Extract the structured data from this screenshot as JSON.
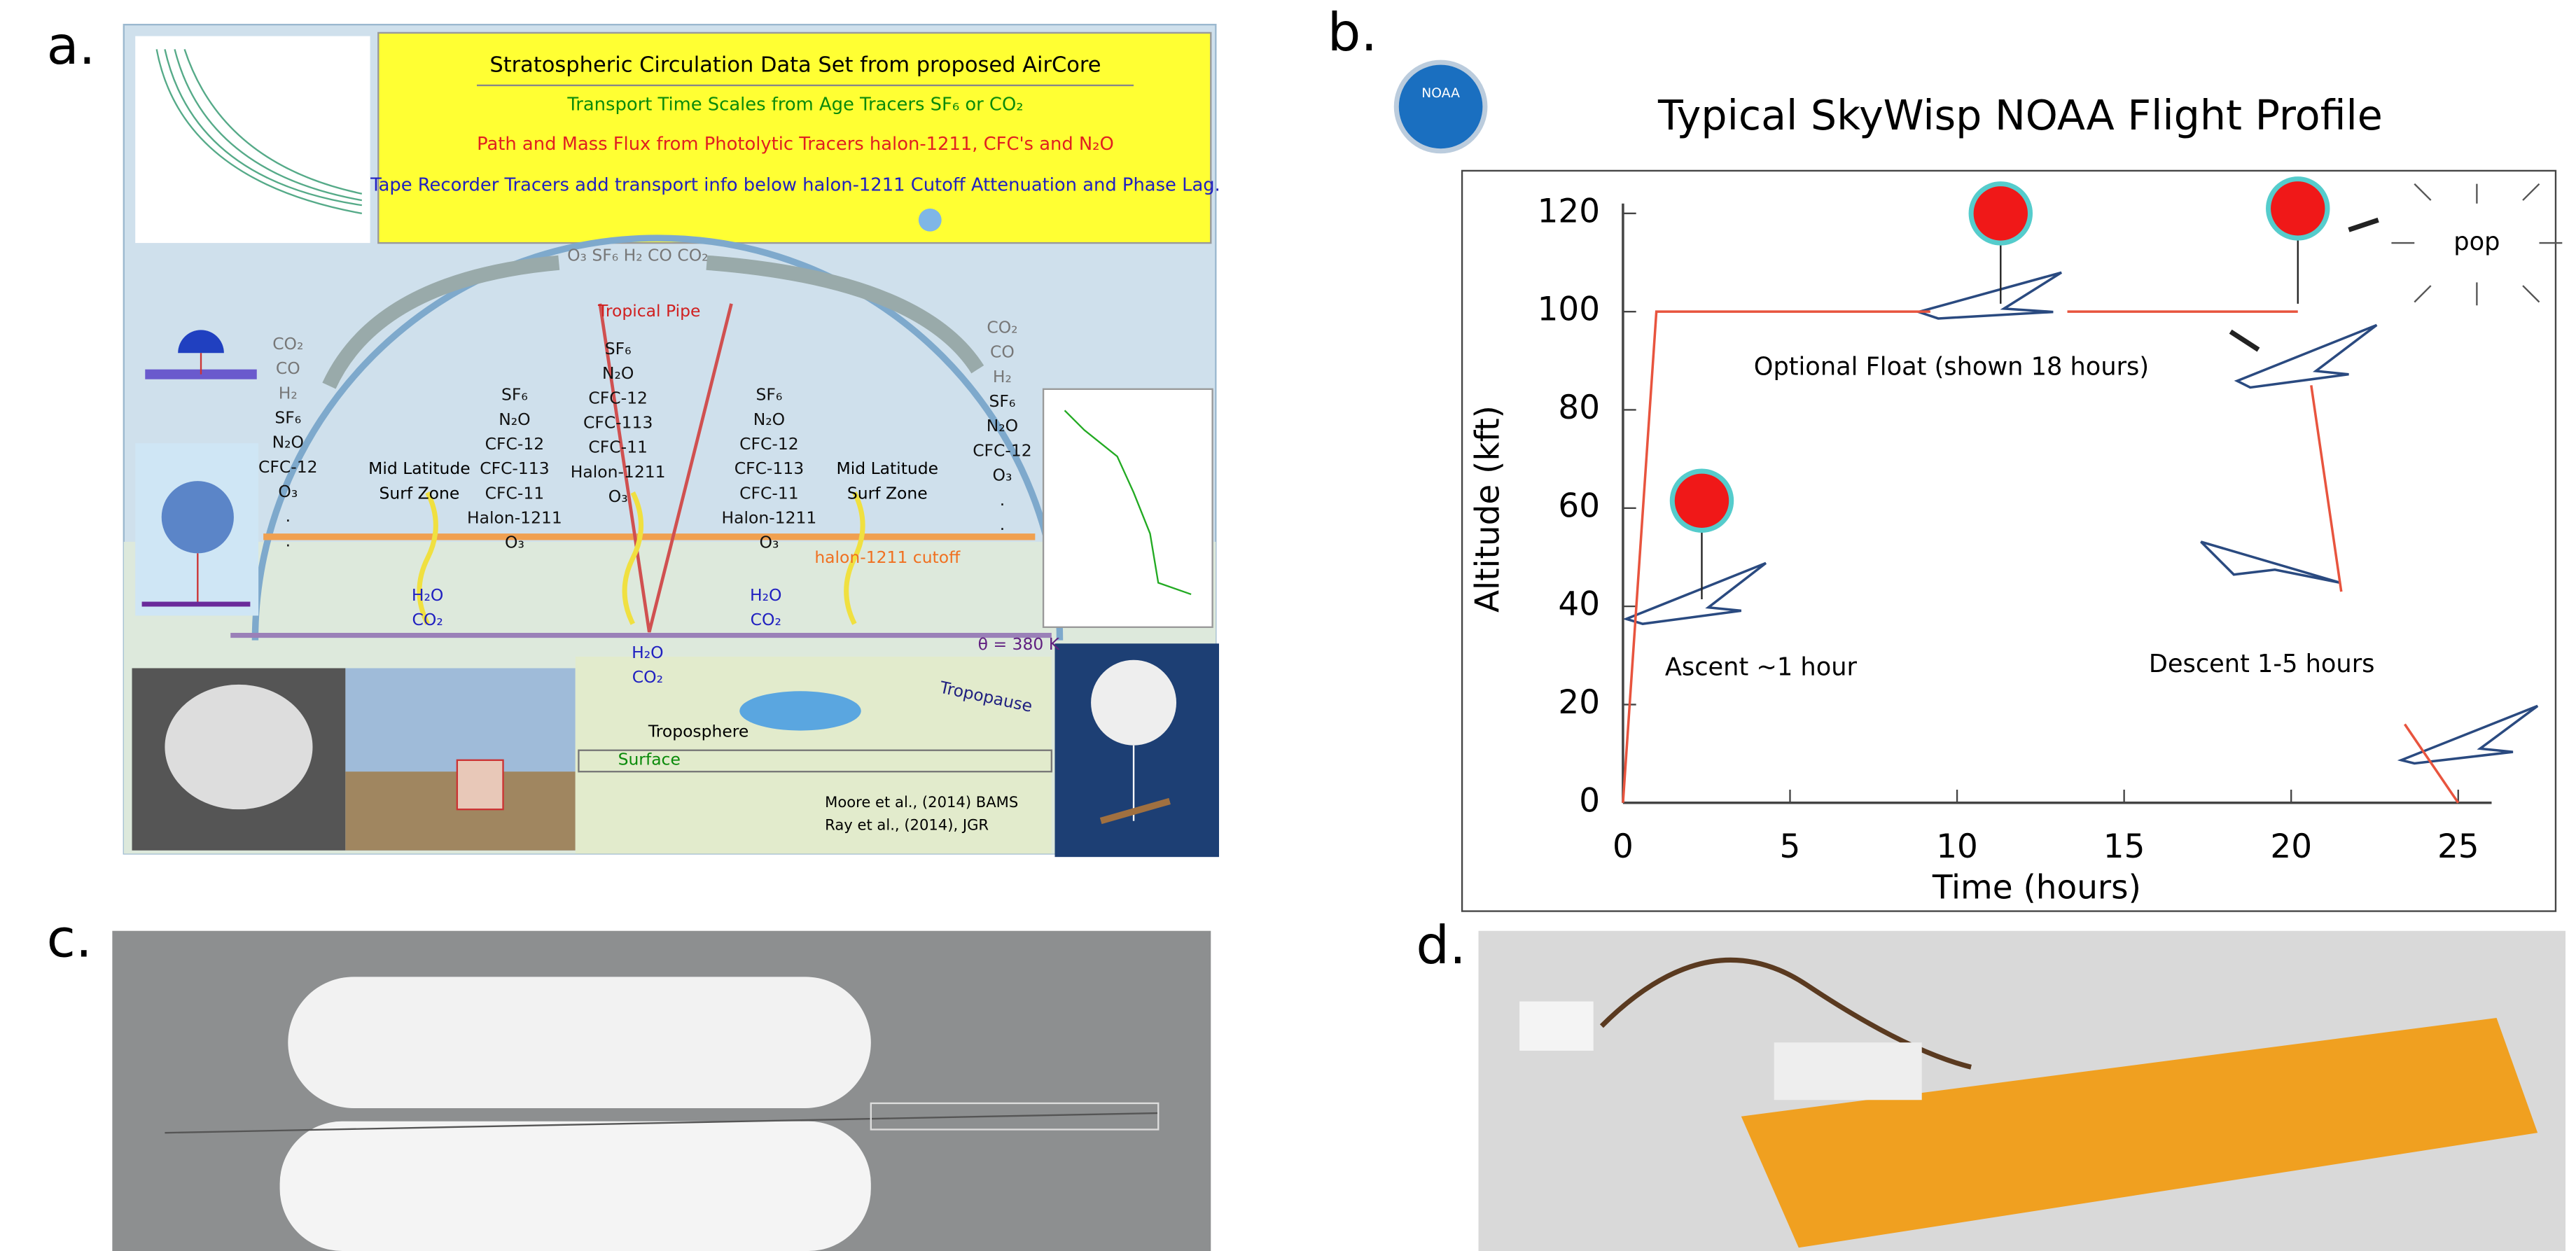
{
  "panel_labels": [
    "a.",
    "b.",
    "c.",
    "d."
  ],
  "diagram_a": {
    "box_lines": [
      "Stratospheric Circulation Data Set from proposed AirCore",
      "Transport Time Scales from Age Tracers SF₆ or CO₂",
      "Path and Mass Flux from Photolytic Tracers halon-1211, CFC's and N₂O",
      "Tape Recorder Tracers add transport info below halon-1211 Cutoff Attenuation and Phase Lag."
    ],
    "arch_label": "O₃ SF₆ H₂ CO CO₂",
    "tropical_pipe": "Tropical Pipe",
    "columns": [
      [
        "CO₂",
        "CO",
        "H₂",
        "SF₆",
        "N₂O",
        "CFC-12",
        "O₃",
        ".",
        "."
      ],
      [
        "SF₆",
        "N₂O",
        "CFC-12",
        "CFC-113",
        "CFC-11",
        "Halon-1211",
        "O₃"
      ],
      [
        "SF₆",
        "N₂O",
        "CFC-12",
        "CFC-113",
        "CFC-11",
        "Halon-1211",
        "O₃"
      ],
      [
        "SF₆",
        "N₂O",
        "CFC-12",
        "CFC-113",
        "CFC-11",
        "Halon-1211",
        "O₃"
      ],
      [
        "CO₂",
        "CO",
        "H₂",
        "SF₆",
        "N₂O",
        "CFC-12",
        "O₃",
        ".",
        "."
      ]
    ],
    "surf_zones": [
      [
        "Mid Latitude",
        "Surf Zone"
      ],
      [
        "Mid Latitude",
        "Surf Zone"
      ]
    ],
    "water": [
      [
        "H₂O",
        "CO₂"
      ],
      [
        "H₂O",
        "CO₂"
      ],
      [
        "H₂O",
        "CO₂"
      ]
    ],
    "cutoff": "halon-1211 cutoff",
    "theta": "θ = 380 K",
    "tropopause": "Tropopause",
    "troposphere": "Troposphere",
    "surface": "Surface",
    "refs": [
      "Moore et al., (2014) BAMS",
      "Ray et al., (2014), JGR"
    ]
  },
  "chart_data": {
    "type": "line",
    "title": "Typical SkyWisp NOAA Flight Profile",
    "x_label": "Time (hours)",
    "y_label": "Altitude (kft)",
    "x": [
      0,
      1,
      9.2,
      null,
      13.3,
      20.2,
      null,
      20.6,
      21.5,
      null,
      23.4,
      25
    ],
    "series": [
      {
        "color": "#e8543e",
        "values": [
          0,
          100,
          100,
          null,
          100,
          100,
          null,
          85,
          43,
          null,
          16,
          0
        ]
      }
    ],
    "xlim": [
      0,
      26
    ],
    "ylim": [
      0,
      122
    ],
    "xticks": [
      0,
      5,
      10,
      15,
      20,
      25
    ],
    "yticks": [
      0,
      20,
      40,
      60,
      80,
      100,
      120
    ],
    "annotations": [
      "Optional Float (shown 18 hours)",
      "Ascent ~1 hour",
      "Descent 1-5 hours",
      "pop"
    ],
    "logo": "NOAA"
  }
}
